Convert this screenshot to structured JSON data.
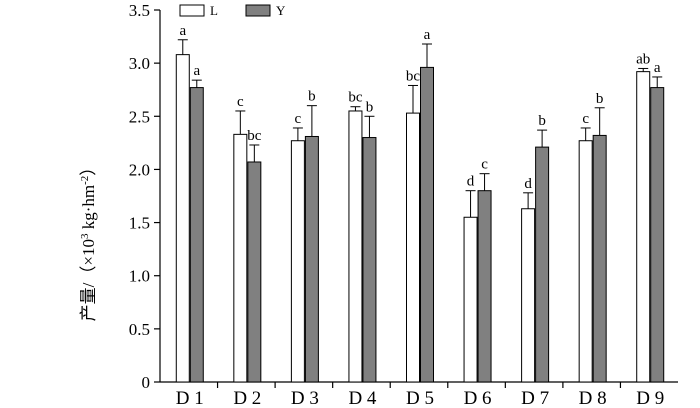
{
  "chart_data": {
    "type": "bar",
    "ylabel_main": "产量/（×10",
    "ylabel_sup": "3",
    "ylabel_unit": " kg·hm",
    "ylabel_unit_sup": "-2",
    "ylabel_close": "）",
    "ylim": [
      0,
      3.5
    ],
    "yticks": [
      "0",
      "0.5",
      "1.0",
      "1.5",
      "2.0",
      "2.5",
      "3.0",
      "3.5"
    ],
    "ytick_values": [
      0,
      0.5,
      1.0,
      1.5,
      2.0,
      2.5,
      3.0,
      3.5
    ],
    "categories": [
      "D 1",
      "D 2",
      "D 3",
      "D 4",
      "D 5",
      "D 6",
      "D 7",
      "D 8",
      "D 9"
    ],
    "legend_position": "top-left",
    "grid": false,
    "series": [
      {
        "name": "L",
        "color": "#ffffff",
        "values": [
          3.08,
          2.33,
          2.27,
          2.55,
          2.53,
          1.55,
          1.63,
          2.27,
          2.92
        ],
        "errors": [
          0.14,
          0.22,
          0.12,
          0.04,
          0.26,
          0.25,
          0.15,
          0.12,
          0.03
        ],
        "letters": [
          "a",
          "c",
          "c",
          "bc",
          "bc",
          "d",
          "d",
          "c",
          "ab"
        ]
      },
      {
        "name": "Y",
        "color": "#808080",
        "values": [
          2.77,
          2.07,
          2.31,
          2.3,
          2.96,
          1.8,
          2.21,
          2.32,
          2.77
        ],
        "errors": [
          0.07,
          0.16,
          0.29,
          0.2,
          0.22,
          0.16,
          0.16,
          0.26,
          0.1
        ],
        "letters": [
          "a",
          "bc",
          "b",
          "b",
          "a",
          "c",
          "b",
          "b",
          "a"
        ]
      }
    ]
  }
}
